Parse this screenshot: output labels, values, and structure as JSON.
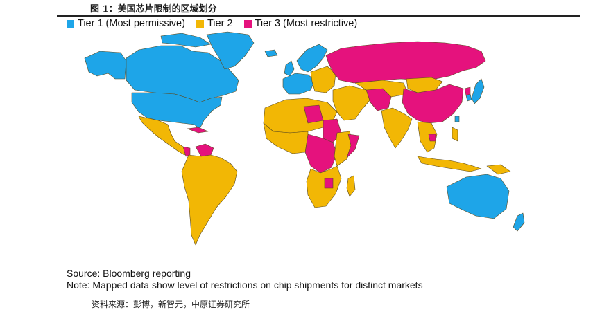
{
  "figure": {
    "title": "图 1：美国芯片限制的区域划分"
  },
  "legend": [
    {
      "label": "Tier 1 (Most permissive)",
      "color": "#1ea5e8"
    },
    {
      "label": "Tier 2",
      "color": "#f2b705"
    },
    {
      "label": "Tier 3 (Most restrictive)",
      "color": "#e5127d"
    }
  ],
  "colors": {
    "tier1": "#1ea5e8",
    "tier2": "#f2b705",
    "tier3": "#e5127d",
    "border": "#5a4a20"
  },
  "notes": {
    "source": "Source: Bloomberg reporting",
    "note": "Note: Mapped data show level of restrictions on chip shipments for distinct markets"
  },
  "footer": {
    "source_cn": "资料来源：彭博，新智元，中原证券研究所"
  }
}
